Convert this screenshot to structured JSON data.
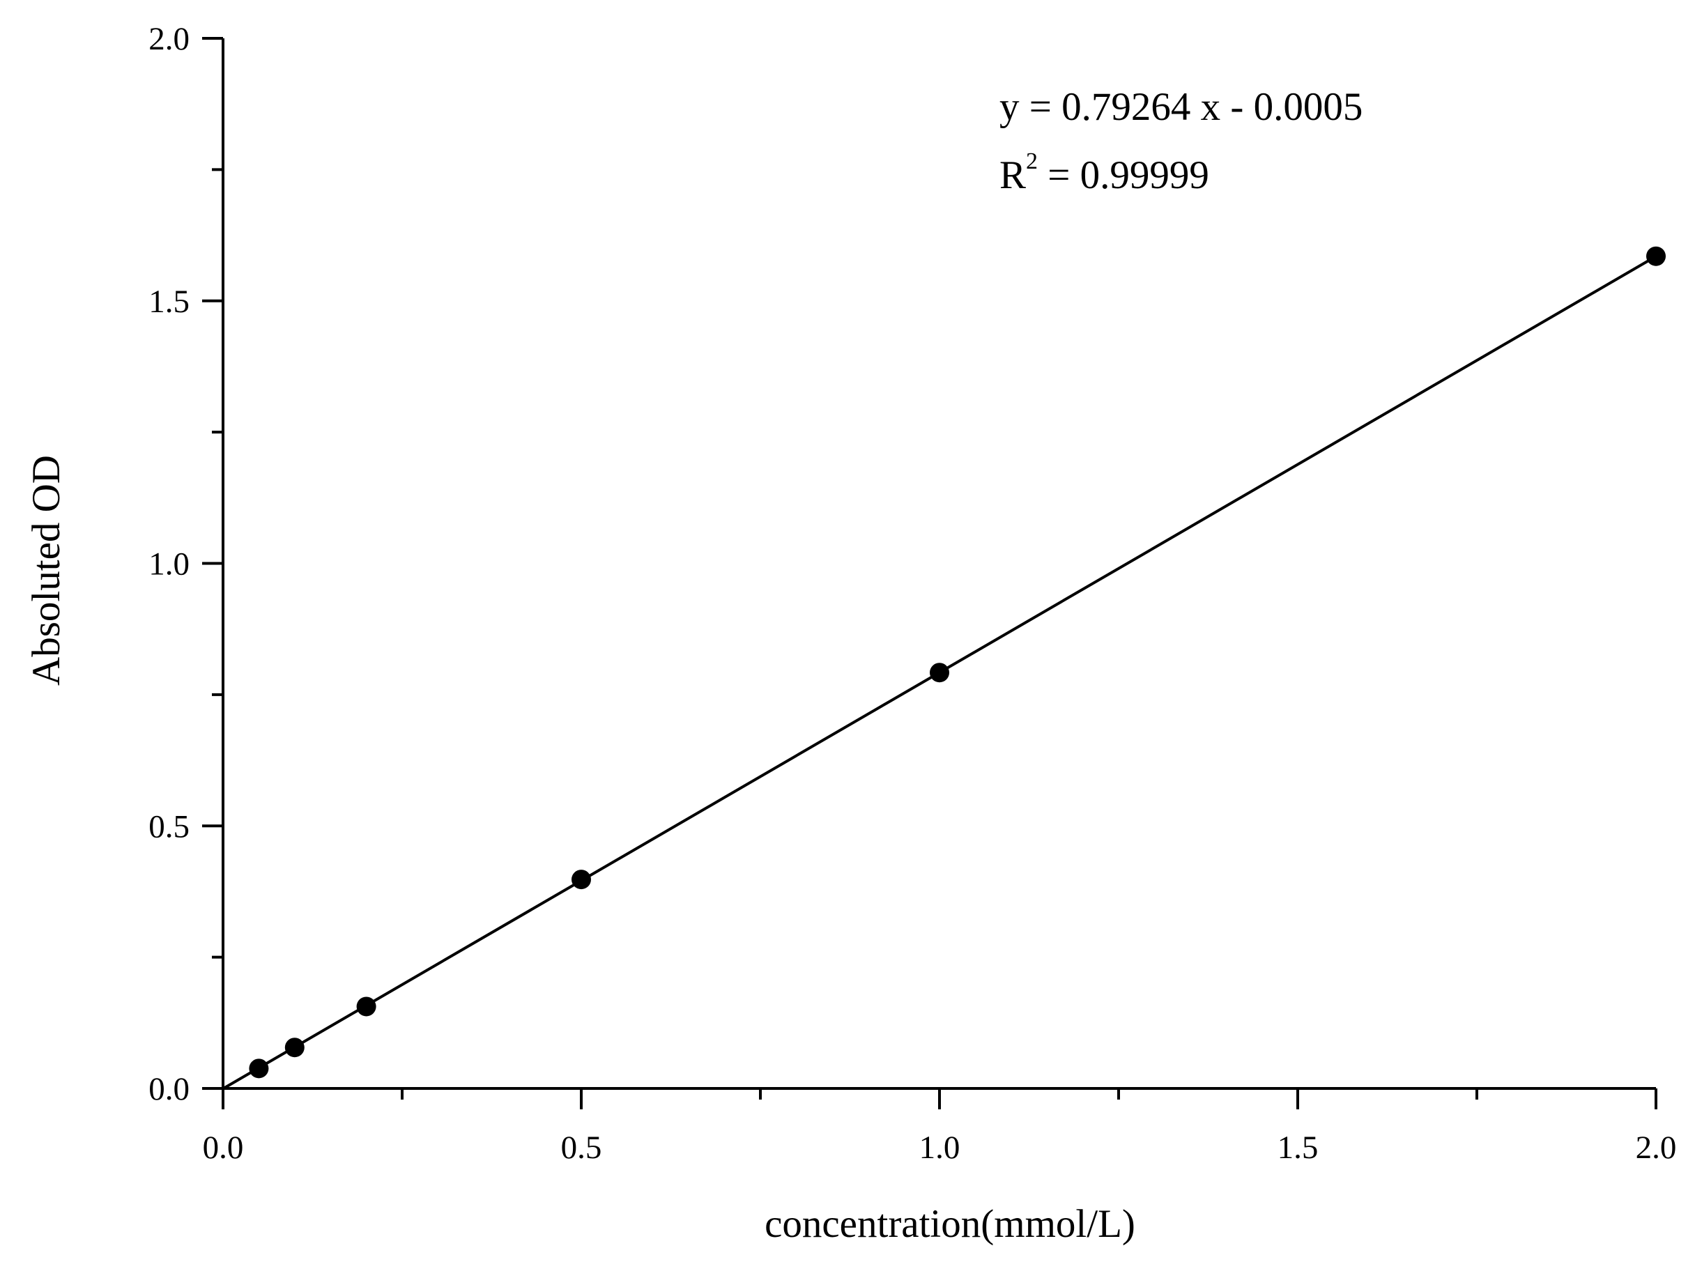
{
  "chart_data": {
    "type": "scatter",
    "title": "",
    "xlabel": "concentration(mmol/L)",
    "ylabel": "Absoluted OD",
    "xlim": [
      0.0,
      2.0
    ],
    "ylim": [
      0.0,
      2.0
    ],
    "x_ticks": [
      "0.0",
      "0.5",
      "1.0",
      "1.5",
      "2.0"
    ],
    "y_ticks": [
      "0.0",
      "0.5",
      "1.0",
      "1.5",
      "2.0"
    ],
    "x_minor_step": 0.25,
    "y_minor_step": 0.25,
    "grid": false,
    "legend": "none",
    "series": [
      {
        "x": [
          0.05,
          0.1,
          0.2,
          0.5,
          1.0,
          2.0
        ],
        "y": [
          0.038,
          0.078,
          0.156,
          0.398,
          0.792,
          1.585
        ],
        "marker": "filled-circle",
        "color": "#000000"
      }
    ],
    "fit_line": {
      "slope": 0.79264,
      "intercept": -0.0005,
      "x_range": [
        0.0,
        2.0
      ],
      "color": "#000000"
    },
    "annotations": {
      "equation": "y = 0.79264 x - 0.0005",
      "r_squared_base": "R",
      "r_squared_sup": "2",
      "r_squared_value": " = 0.99999"
    }
  }
}
